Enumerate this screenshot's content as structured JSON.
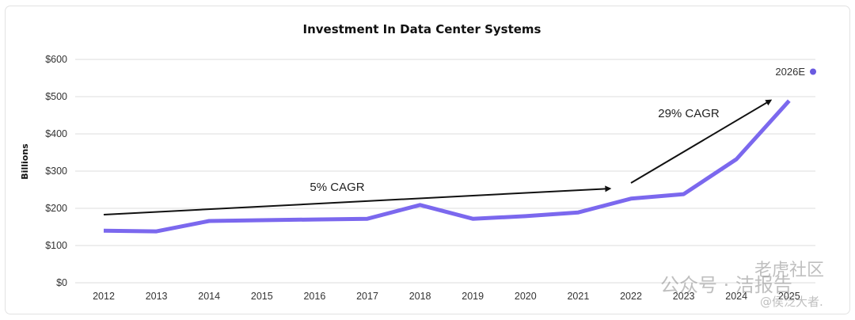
{
  "chart_data": {
    "type": "line",
    "title": "Investment In Data Center Systems",
    "xlabel": "",
    "ylabel": "Billions",
    "ylim": [
      0,
      600
    ],
    "yticks": [
      0,
      100,
      200,
      300,
      400,
      500,
      600
    ],
    "ytick_labels": [
      "$0",
      "$100",
      "$200",
      "$300",
      "$400",
      "$500",
      "$600"
    ],
    "grid": true,
    "x": [
      "2012",
      "2013",
      "2014",
      "2015",
      "2016",
      "2017",
      "2018",
      "2019",
      "2020",
      "2021",
      "2022",
      "2023",
      "2024",
      "2025"
    ],
    "series": [
      {
        "name": "Investment",
        "color": "#7b68ee",
        "values": [
          140,
          138,
          166,
          168,
          170,
          172,
          209,
          172,
          179,
          189,
          226,
          238,
          332,
          489
        ]
      }
    ],
    "estimate_point": {
      "label": "2026E",
      "value": 567,
      "color": "#6a5ae0"
    },
    "annotations": [
      {
        "text": "5% CAGR",
        "arrow_from": [
          2012,
          183
        ],
        "arrow_to": [
          2021.6,
          253
        ]
      },
      {
        "text": "29% CAGR",
        "arrow_from": [
          2022,
          268
        ],
        "arrow_to": [
          2024.65,
          490
        ]
      }
    ],
    "legend": "top-right"
  },
  "watermark": {
    "line1": "公众号 · 洁报告",
    "line2": "@侯泛大者.",
    "line3": "老虎社区"
  }
}
